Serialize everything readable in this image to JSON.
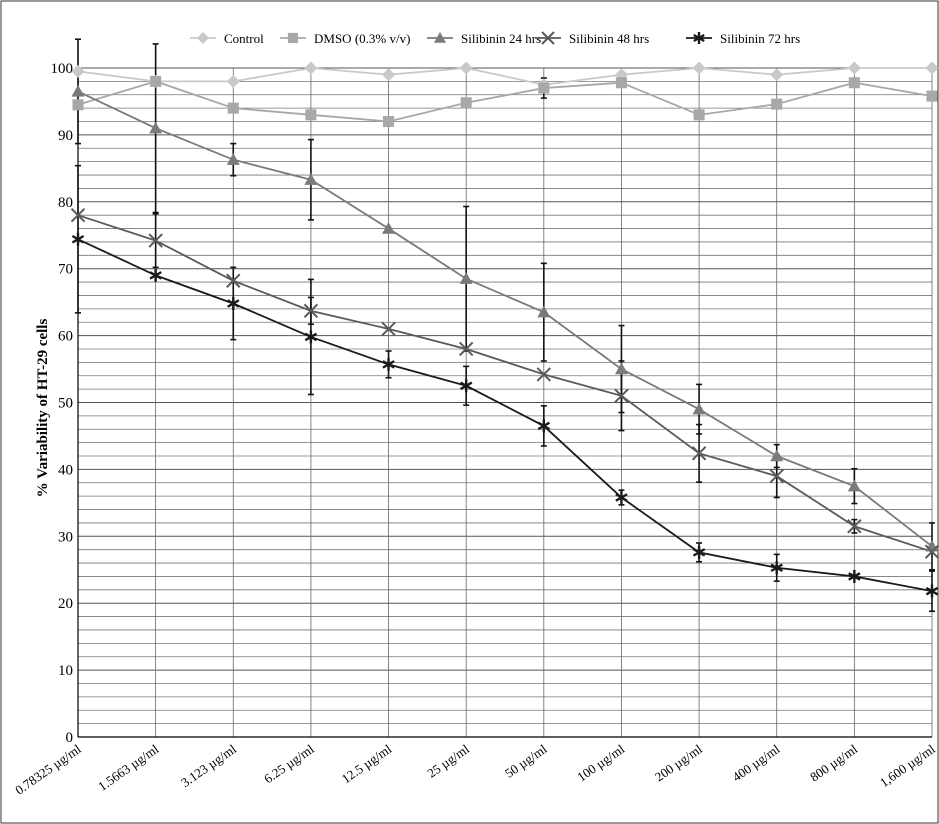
{
  "chart_data": {
    "type": "line",
    "title": "",
    "xlabel": "",
    "ylabel": "% Variability of HT-29 cells",
    "ylim": [
      0,
      100
    ],
    "yticks": [
      0,
      10,
      20,
      30,
      40,
      50,
      60,
      70,
      80,
      90,
      100
    ],
    "grid": "on",
    "legend_position": "top",
    "categories": [
      "0.78325 µg/ml",
      "1.5663 µg/ml",
      "3.123 µg/ml",
      "6.25 µg/ml",
      "12.5 µg/ml",
      "25 µg/ml",
      "50 µg/ml",
      "100 µg/ml",
      "200 µg/ml",
      "400 µg/ml",
      "800 µg/ml",
      "1,600 µg/ml"
    ],
    "series": [
      {
        "name": "Control",
        "marker": "diamond",
        "color": "#c9c9c9",
        "values": [
          99.5,
          98,
          98,
          100,
          99,
          100,
          97.5,
          99,
          100,
          99,
          100,
          100
        ],
        "errors": [
          0,
          0,
          0,
          0,
          0,
          0,
          0,
          0,
          0,
          0,
          0,
          0
        ]
      },
      {
        "name": "DMSO (0.3% v/v)",
        "marker": "square",
        "color": "#a8a8a8",
        "values": [
          94.5,
          98,
          94,
          93,
          92,
          94.8,
          97,
          97.8,
          93,
          94.6,
          97.8,
          95.8
        ],
        "errors": [
          0,
          0,
          0,
          0,
          0,
          0,
          1.5,
          0,
          0,
          0,
          0,
          0
        ]
      },
      {
        "name": "Silibinin 24 hrs",
        "marker": "triangle",
        "color": "#7a7a7a",
        "values": [
          96.5,
          91,
          86.3,
          83.3,
          76,
          68.5,
          63.5,
          55,
          49,
          42,
          37.5,
          28.5
        ],
        "errors": [
          7.8,
          12.6,
          2.4,
          6,
          0,
          10.8,
          7.3,
          6.5,
          3.7,
          1.7,
          2.6,
          3.5
        ]
      },
      {
        "name": "Silibinin 48 hrs",
        "marker": "x",
        "color": "#5a5a5a",
        "values": [
          78,
          74.2,
          68.2,
          63.7,
          61,
          58,
          54.2,
          51,
          42.4,
          39,
          31.5,
          27.7
        ],
        "errors": [
          0,
          4,
          0,
          2,
          0,
          0,
          0,
          5.2,
          4.3,
          3.2,
          1,
          0
        ]
      },
      {
        "name": "Silibinin 72 hrs",
        "marker": "asterisk",
        "color": "#1a1a1a",
        "values": [
          74.4,
          69,
          64.8,
          59.8,
          55.7,
          52.5,
          46.5,
          35.8,
          27.6,
          25.3,
          24,
          21.8
        ],
        "errors": [
          11,
          0,
          5.4,
          8.6,
          2,
          2.9,
          3,
          1.1,
          1.4,
          2,
          0,
          3
        ]
      }
    ]
  }
}
